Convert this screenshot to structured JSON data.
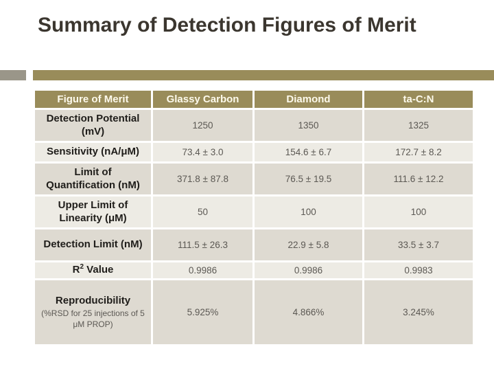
{
  "slide": {
    "title": "Summary of Detection Figures of Merit"
  },
  "colors": {
    "accent_olive": "#998C5A",
    "accent_gray": "#9A9689",
    "row_dark": "#DEDAD1",
    "row_light": "#EDEBE4",
    "header_text": "#FDFAEC",
    "label_text": "#1F1D1A",
    "value_text": "#5B5853",
    "title_text": "#3B362F"
  },
  "table": {
    "columns": [
      "Figure of Merit",
      "Glassy Carbon",
      "Diamond",
      "ta-C:N"
    ],
    "rows": [
      {
        "label": "Detection Potential (mV)",
        "values": [
          "1250",
          "1350",
          "1325"
        ]
      },
      {
        "label": "Sensitivity (nA/μM)",
        "values": [
          "73.4 ± 3.0",
          "154.6 ± 6.7",
          "172.7 ± 8.2"
        ]
      },
      {
        "label": "Limit of Quantification (nM)",
        "values": [
          "371.8 ± 87.8",
          "76.5 ± 19.5",
          "111.6 ± 12.2"
        ]
      },
      {
        "label": "Upper Limit of Linearity (μM)",
        "values": [
          "50",
          "100",
          "100"
        ]
      },
      {
        "label": "Detection Limit (nM)",
        "values": [
          "111.5 ± 26.3",
          "22.9 ± 5.8",
          "33.5 ± 3.7"
        ]
      },
      {
        "label_parts": {
          "base": "R",
          "sup": "2",
          "rest": " Value"
        },
        "values": [
          "0.9986",
          "0.9986",
          "0.9983"
        ]
      },
      {
        "label": "Reproducibility",
        "note": "(%RSD for 25 injections of 5 μM PROP)",
        "values": [
          "5.925%",
          "4.866%",
          "3.245%"
        ]
      }
    ]
  }
}
